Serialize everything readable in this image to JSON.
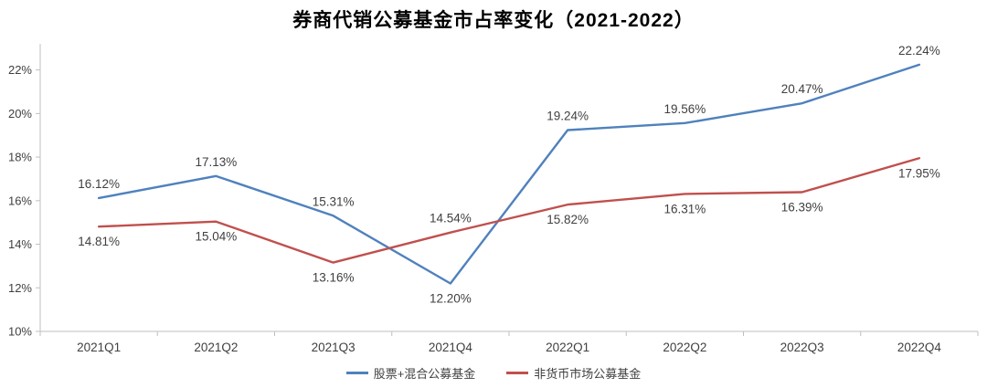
{
  "title": "券商代销公募基金市占率变化（2021-2022）",
  "chart_data": {
    "type": "line",
    "title": "券商代销公募基金市占率变化（2021-2022）",
    "categories": [
      "2021Q1",
      "2021Q2",
      "2021Q3",
      "2021Q4",
      "2022Q1",
      "2022Q2",
      "2022Q3",
      "2022Q4"
    ],
    "series": [
      {
        "name": "股票+混合公募基金",
        "color": "#4F81BD",
        "values": [
          16.12,
          17.13,
          15.31,
          12.2,
          19.24,
          19.56,
          20.47,
          22.24
        ],
        "data_labels": [
          "16.12%",
          "17.13%",
          "15.31%",
          "12.20%",
          "19.24%",
          "19.56%",
          "20.47%",
          "22.24%"
        ],
        "label_pos": [
          "above",
          "above",
          "above",
          "below",
          "above",
          "above",
          "above",
          "above"
        ]
      },
      {
        "name": "非货币市场公募基金",
        "color": "#C0504D",
        "values": [
          14.81,
          15.04,
          13.16,
          14.54,
          15.82,
          16.31,
          16.39,
          17.95
        ],
        "data_labels": [
          "14.81%",
          "15.04%",
          "13.16%",
          "14.54%",
          "15.82%",
          "16.31%",
          "16.39%",
          "17.95%"
        ],
        "label_pos": [
          "below",
          "below",
          "below",
          "above",
          "below",
          "below",
          "below",
          "below"
        ]
      }
    ],
    "y_ticks": [
      "10%",
      "12%",
      "14%",
      "16%",
      "18%",
      "20%",
      "22%"
    ],
    "y_tick_values": [
      10,
      12,
      14,
      16,
      18,
      20,
      22
    ],
    "ylim": [
      10,
      23.2
    ],
    "y_major_unit": 2,
    "grid": false,
    "legend_position": "bottom",
    "axis_color": "#BFBFBF",
    "tick_label_color": "#404040",
    "data_label_color": "#404040"
  }
}
